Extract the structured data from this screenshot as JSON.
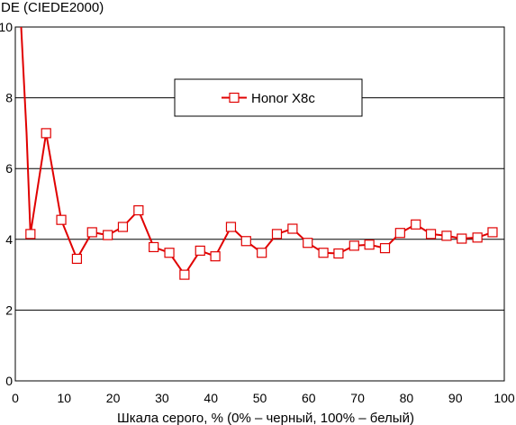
{
  "chart_data": {
    "type": "line",
    "title": "",
    "ylabel": "DE (CIEDE2000)",
    "xlabel": "Шкала серого, % (0% – черный, 100% – белый)",
    "xlim": [
      0,
      100
    ],
    "ylim": [
      0,
      10
    ],
    "x_ticks": [
      "0",
      "10",
      "20",
      "30",
      "40",
      "50",
      "60",
      "70",
      "80",
      "90",
      "100"
    ],
    "y_ticks": [
      "0",
      "2",
      "4",
      "6",
      "8",
      "10"
    ],
    "grid": "horizontal",
    "legend_position": "top-center",
    "series": [
      {
        "name": "Honor X8c",
        "color": "#e00000",
        "marker": "square-open",
        "lead_in": [
          [
            1.2,
            10.0
          ],
          [
            2.3,
            7.0
          ]
        ],
        "points": [
          [
            3.1,
            4.15
          ],
          [
            6.3,
            7.0
          ],
          [
            9.4,
            4.55
          ],
          [
            12.6,
            3.45
          ],
          [
            15.7,
            4.2
          ],
          [
            18.9,
            4.12
          ],
          [
            22.0,
            4.35
          ],
          [
            25.2,
            4.82
          ],
          [
            28.3,
            3.78
          ],
          [
            31.5,
            3.62
          ],
          [
            34.6,
            3.0
          ],
          [
            37.8,
            3.68
          ],
          [
            40.9,
            3.52
          ],
          [
            44.1,
            4.35
          ],
          [
            47.2,
            3.95
          ],
          [
            50.4,
            3.62
          ],
          [
            53.5,
            4.15
          ],
          [
            56.7,
            4.3
          ],
          [
            59.8,
            3.9
          ],
          [
            63.0,
            3.62
          ],
          [
            66.1,
            3.6
          ],
          [
            69.3,
            3.82
          ],
          [
            72.4,
            3.85
          ],
          [
            75.6,
            3.75
          ],
          [
            78.7,
            4.18
          ],
          [
            81.9,
            4.42
          ],
          [
            85.0,
            4.15
          ],
          [
            88.2,
            4.1
          ],
          [
            91.3,
            4.02
          ],
          [
            94.5,
            4.05
          ],
          [
            97.6,
            4.2
          ]
        ]
      }
    ]
  }
}
